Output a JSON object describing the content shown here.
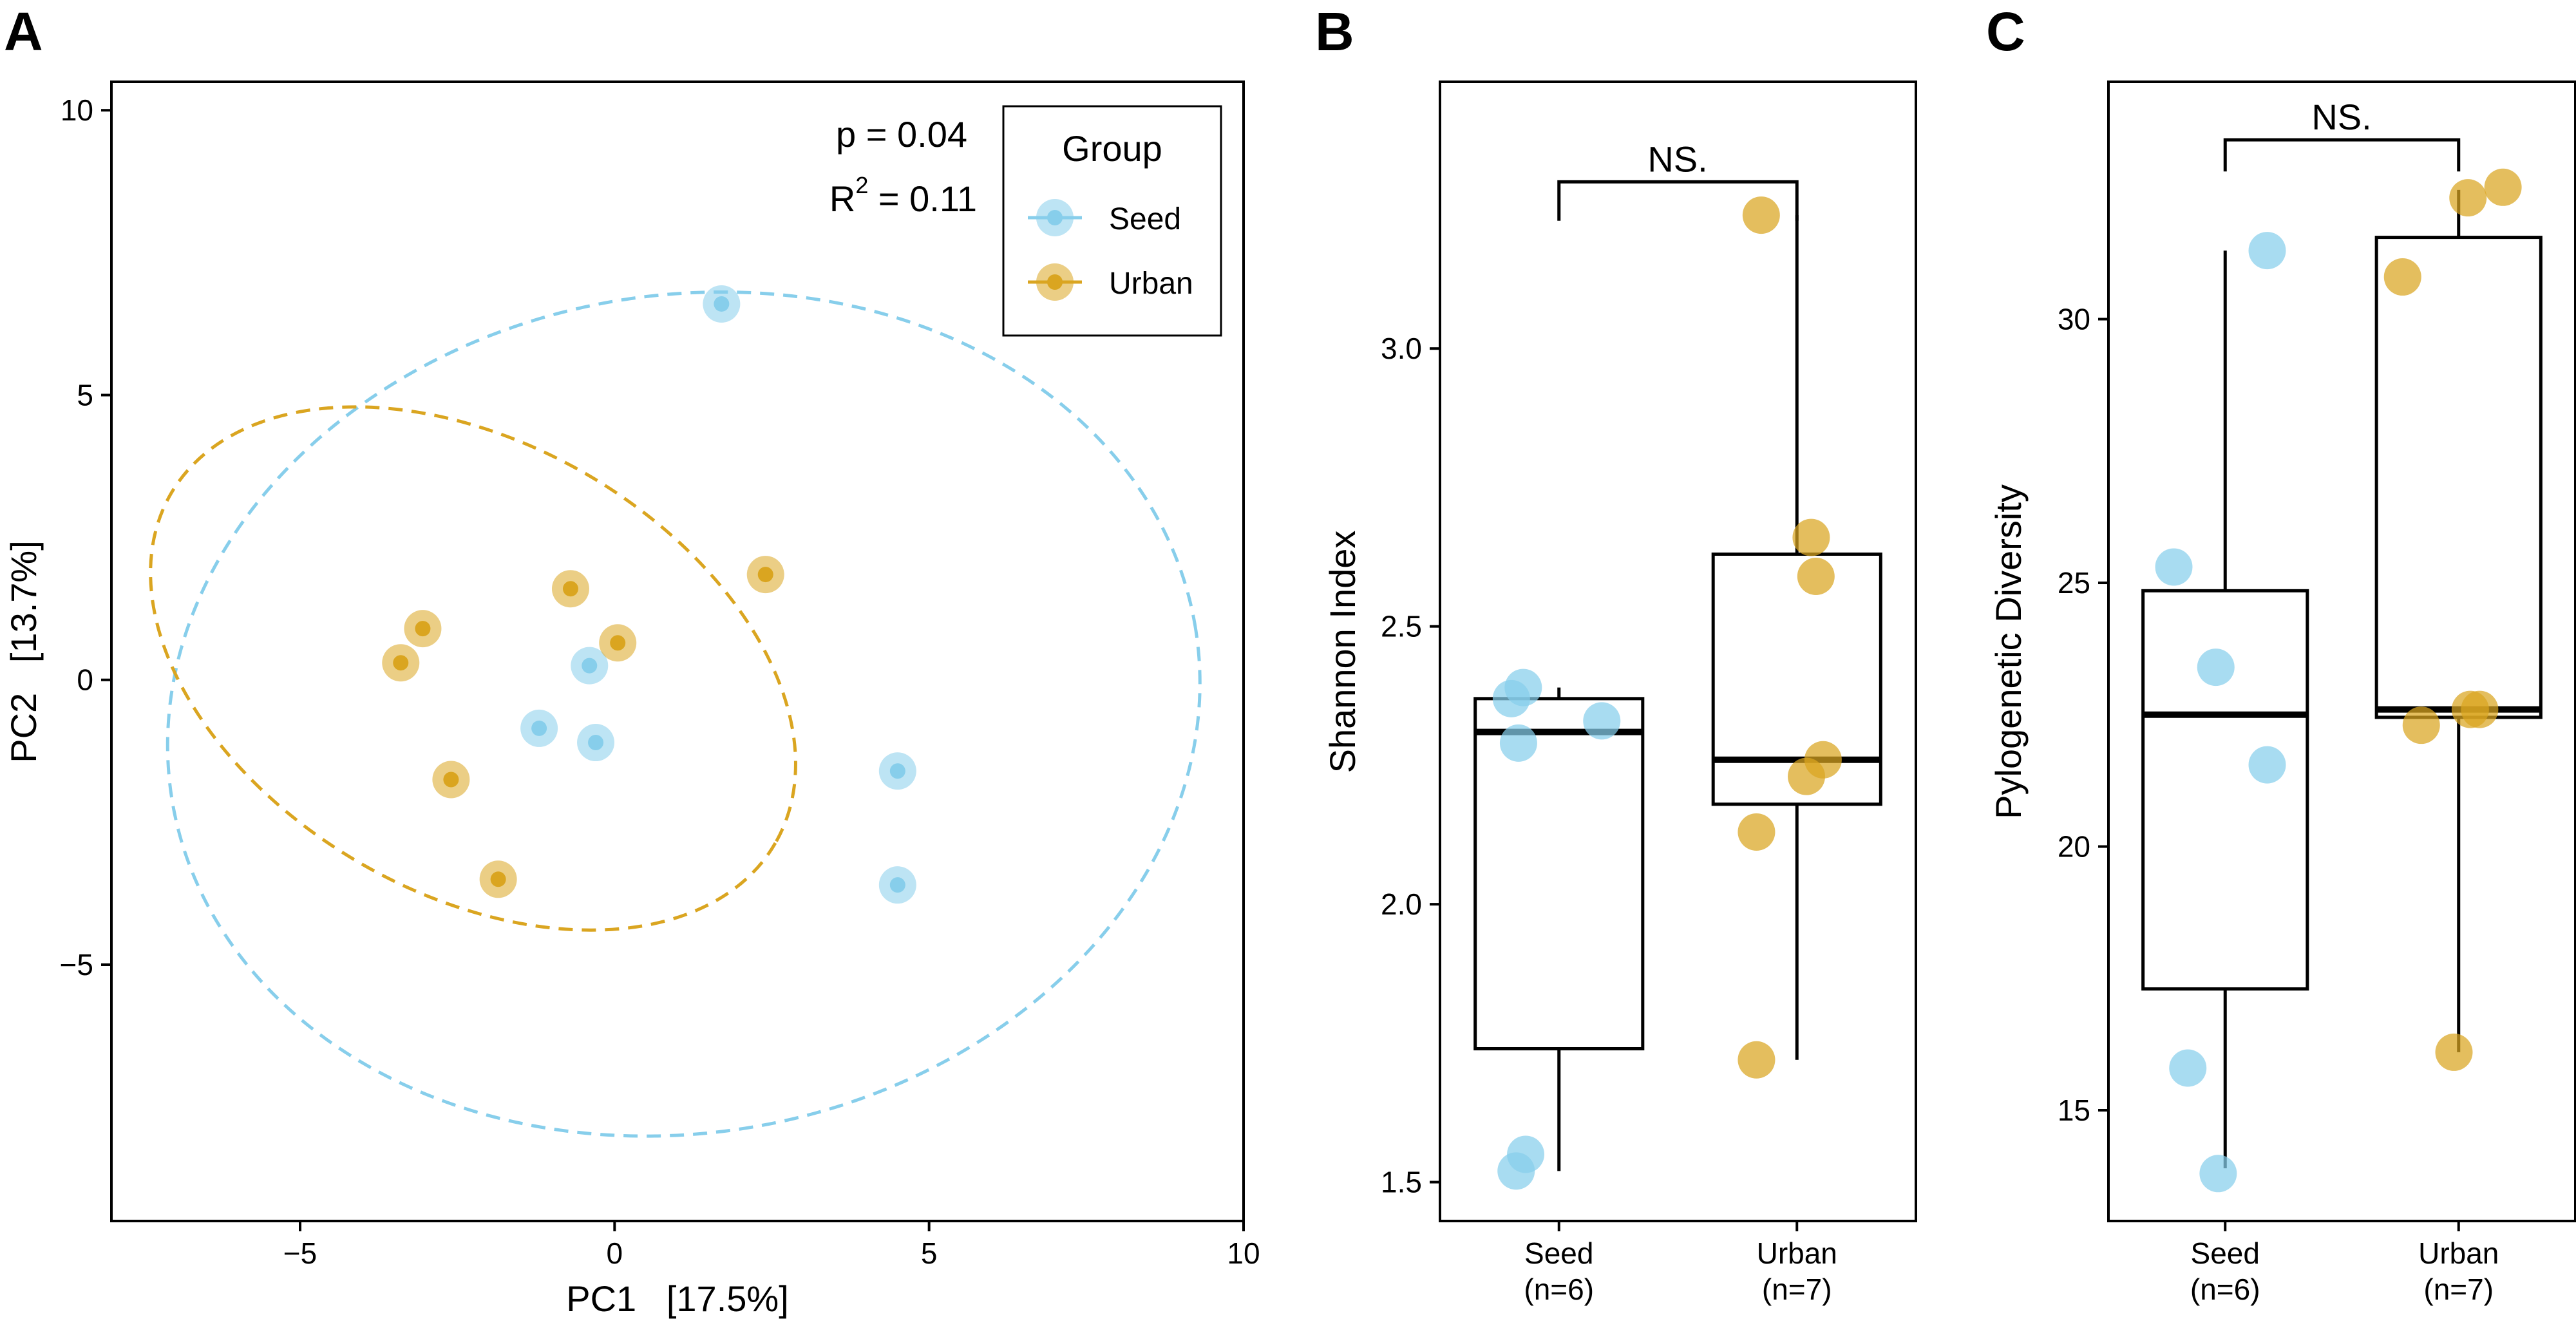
{
  "colors": {
    "seed": "#87CEEB",
    "urban": "#DAA520"
  },
  "chart_data": [
    {
      "panel": "A",
      "type": "scatter",
      "xlabel": "PC1   [17.5%]",
      "ylabel": "PC2   [13.7%]",
      "xlim": [
        -8,
        10
      ],
      "ylim": [
        -9.5,
        10.5
      ],
      "xticks": [
        -5,
        0,
        5,
        10
      ],
      "xtick_labels": [
        "−5",
        "0",
        "5",
        "10"
      ],
      "yticks": [
        -5,
        0,
        5,
        10
      ],
      "ytick_labels": [
        "−5",
        "0",
        "5",
        "10"
      ],
      "grid": false,
      "stats": {
        "p_text": "p = 0.04",
        "r2_main": "R",
        "r2_sup": "2",
        "r2_value": " = 0.11"
      },
      "legend": {
        "title": "Group",
        "position": "top-right",
        "entries": [
          "Seed",
          "Urban"
        ]
      },
      "series": [
        {
          "name": "Seed",
          "color_key": "seed",
          "points": [
            [
              1.7,
              6.6
            ],
            [
              -0.4,
              0.25
            ],
            [
              -1.2,
              -0.85
            ],
            [
              -0.3,
              -1.1
            ],
            [
              4.5,
              -1.6
            ],
            [
              4.5,
              -3.6
            ]
          ]
        },
        {
          "name": "Urban",
          "color_key": "urban",
          "points": [
            [
              -3.4,
              0.3
            ],
            [
              -3.05,
              0.9
            ],
            [
              -0.7,
              1.6
            ],
            [
              0.05,
              0.65
            ],
            [
              2.4,
              1.85
            ],
            [
              -2.6,
              -1.75
            ],
            [
              -1.85,
              -3.5
            ]
          ]
        }
      ],
      "ellipses": [
        {
          "group": "Seed",
          "color_key": "seed",
          "center": [
            1.1,
            -0.6
          ],
          "radii": [
            8.25,
            7.35
          ],
          "rotation_deg": -10
        },
        {
          "group": "Urban",
          "color_key": "urban",
          "center": [
            -2.25,
            0.2
          ],
          "radii": [
            5.55,
            3.95
          ],
          "rotation_deg": 30
        }
      ]
    },
    {
      "panel": "B",
      "type": "box",
      "ylabel": "Shannon Index",
      "ylim": [
        1.43,
        3.48
      ],
      "yticks": [
        1.5,
        2.0,
        2.5,
        3.0
      ],
      "ytick_labels": [
        "1.5",
        "2.0",
        "2.5",
        "3.0"
      ],
      "significance": "NS.",
      "groups": [
        {
          "label": "Seed",
          "n_label": "(n=6)",
          "color_key": "seed",
          "min": 1.52,
          "q1": 1.74,
          "median": 2.31,
          "q3": 2.37,
          "max": 2.39,
          "points": [
            [
              -0.15,
              2.39
            ],
            [
              -0.2,
              2.37
            ],
            [
              0.18,
              2.33
            ],
            [
              -0.17,
              2.29
            ],
            [
              -0.14,
              1.55
            ],
            [
              -0.18,
              1.52
            ]
          ]
        },
        {
          "label": "Urban",
          "n_label": "(n=7)",
          "color_key": "urban",
          "min": 1.72,
          "q1": 2.18,
          "median": 2.26,
          "q3": 2.63,
          "max": 3.24,
          "points": [
            [
              -0.15,
              3.24
            ],
            [
              0.06,
              2.66
            ],
            [
              0.08,
              2.59
            ],
            [
              0.11,
              2.26
            ],
            [
              0.04,
              2.23
            ],
            [
              -0.17,
              2.13
            ],
            [
              -0.17,
              1.72
            ]
          ]
        }
      ],
      "sig_bar": {
        "y": 3.3,
        "drop": 0.07
      }
    },
    {
      "panel": "C",
      "type": "box",
      "ylabel": "Pylogenetic Diversity",
      "ylim": [
        12.9,
        34.5
      ],
      "yticks": [
        15,
        20,
        25,
        30
      ],
      "ytick_labels": [
        "15",
        "20",
        "25",
        "30"
      ],
      "significance": "NS.",
      "groups": [
        {
          "label": "Seed",
          "n_label": "(n=6)",
          "color_key": "seed",
          "min": 13.9,
          "q1": 17.3,
          "median": 22.5,
          "q3": 24.85,
          "max": 31.3,
          "points": [
            [
              0.18,
              31.3
            ],
            [
              -0.22,
              25.3
            ],
            [
              -0.04,
              23.4
            ],
            [
              0.18,
              21.55
            ],
            [
              -0.16,
              15.8
            ],
            [
              -0.03,
              13.8
            ]
          ]
        },
        {
          "label": "Urban",
          "n_label": "(n=7)",
          "color_key": "urban",
          "min": 16.1,
          "q1": 22.45,
          "median": 22.6,
          "q3": 31.55,
          "max": 32.45,
          "points": [
            [
              0.04,
              32.3
            ],
            [
              0.19,
              32.5
            ],
            [
              -0.24,
              30.8
            ],
            [
              0.05,
              22.6
            ],
            [
              0.09,
              22.6
            ],
            [
              -0.16,
              22.3
            ],
            [
              -0.02,
              16.1
            ]
          ]
        }
      ],
      "sig_bar": {
        "y": 33.4,
        "drop": 0.6
      }
    }
  ]
}
